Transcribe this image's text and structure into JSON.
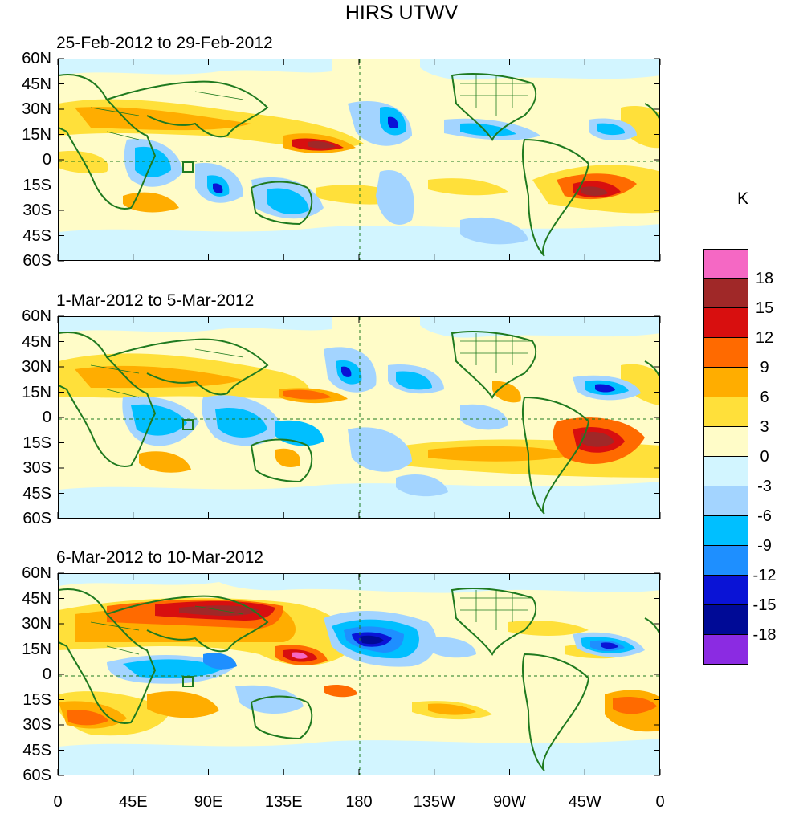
{
  "title": "HIRS UTWV",
  "unit": "K",
  "panels": [
    {
      "subtitle": "25-Feb-2012 to 29-Feb-2012"
    },
    {
      "subtitle": "1-Mar-2012 to 5-Mar-2012"
    },
    {
      "subtitle": "6-Mar-2012 to 10-Mar-2012"
    }
  ],
  "y_ticks": [
    "60N",
    "45N",
    "30N",
    "15N",
    "0",
    "15S",
    "30S",
    "45S",
    "60S"
  ],
  "x_ticks": [
    "0",
    "45E",
    "90E",
    "135E",
    "180",
    "135W",
    "90W",
    "45W",
    "0"
  ],
  "colorbar": {
    "colors": [
      "#f568c4",
      "#a02828",
      "#d80f0f",
      "#ff6a00",
      "#ffad00",
      "#ffe03a",
      "#fffcc8",
      "#d2f5ff",
      "#a3d4ff",
      "#00bfff",
      "#1e8fff",
      "#0a13d6",
      "#000a96",
      "#8b2be2"
    ],
    "labels": [
      "18",
      "15",
      "12",
      "9",
      "6",
      "3",
      "0",
      "-3",
      "-6",
      "-9",
      "-12",
      "-15",
      "-18"
    ]
  },
  "palette": {
    "land_outline": "#1f7a1f",
    "background": "#fffcc8"
  }
}
